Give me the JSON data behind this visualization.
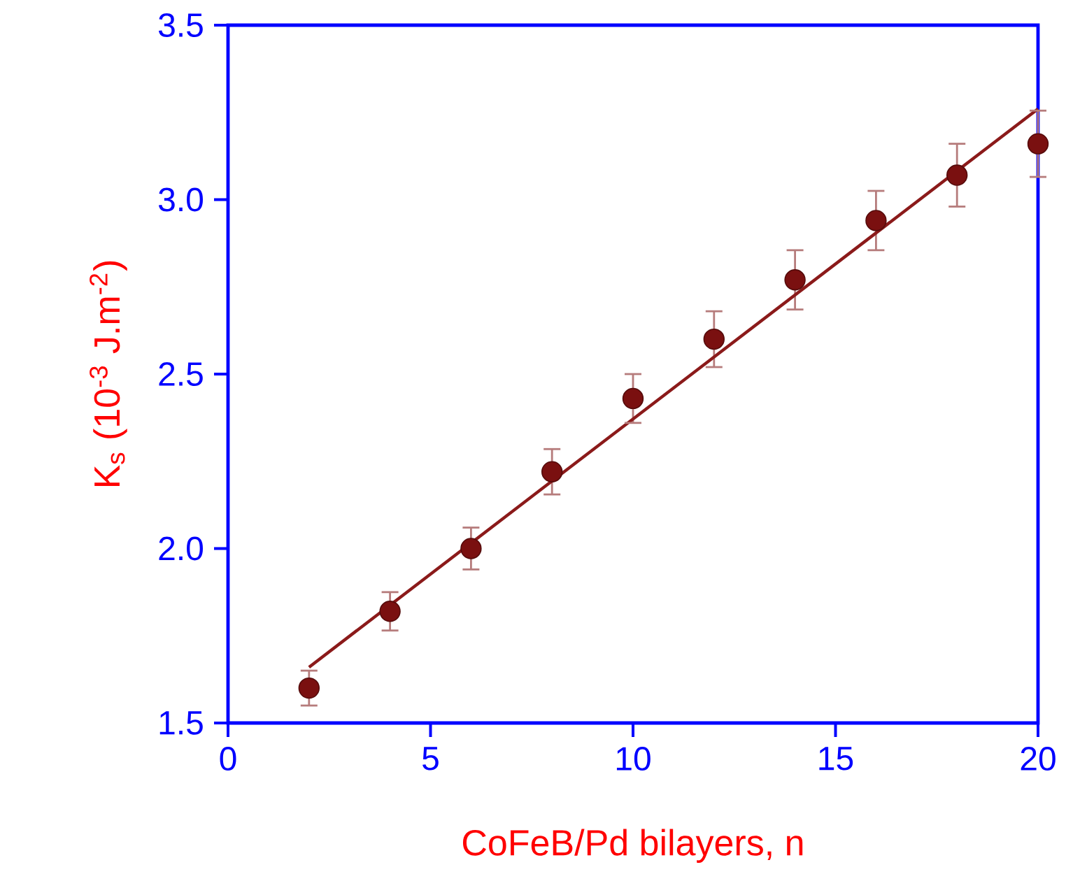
{
  "chart_data": {
    "type": "scatter",
    "xlabel": "CoFeB/Pd bilayers, n",
    "ylabel": "K$_{s}$ (10$^{-3}$ J.m$^{-2}$)",
    "xlim": [
      0,
      20
    ],
    "ylim": [
      1.5,
      3.5
    ],
    "xticks": [
      0,
      5,
      10,
      15,
      20
    ],
    "yticks": [
      1.5,
      {
        "value": 2.0,
        "label": "2.0"
      },
      2.5,
      {
        "value": 3.0,
        "label": "3.0"
      },
      3.5
    ],
    "series": [
      {
        "marker": "circle",
        "color": "#7a1010",
        "x": [
          2,
          4,
          6,
          8,
          10,
          12,
          14,
          16,
          18,
          20
        ],
        "values": [
          1.6,
          1.82,
          2.0,
          2.22,
          2.43,
          2.6,
          2.77,
          2.94,
          3.07,
          3.16
        ],
        "errors": [
          0.05,
          0.055,
          0.06,
          0.065,
          0.07,
          0.08,
          0.085,
          0.085,
          0.09,
          0.095
        ]
      },
      {
        "type": "line",
        "color": "#8b1a1a",
        "x": [
          2,
          20
        ],
        "values": [
          1.66,
          3.26
        ]
      }
    ]
  }
}
